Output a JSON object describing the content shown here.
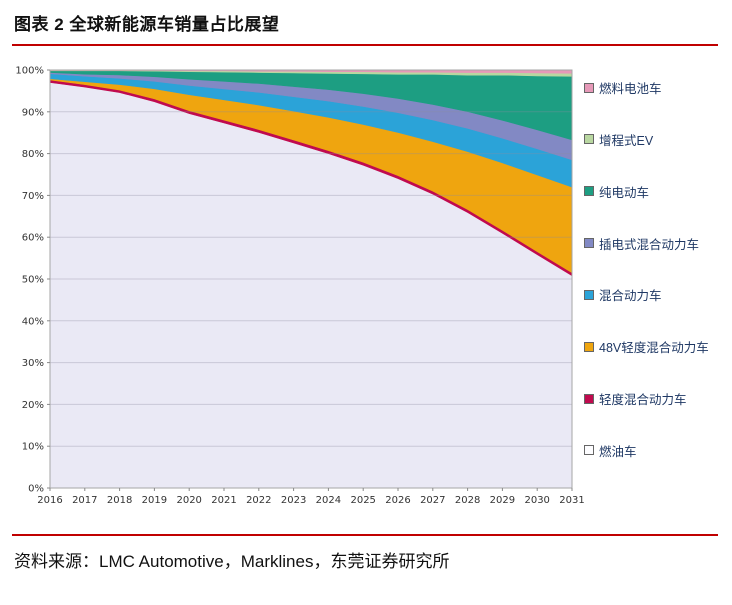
{
  "title": "图表 2 全球新能源车销量占比展望",
  "source": "资料来源：LMC Automotive，Marklines，东莞证券研究所",
  "accent_rule_color": "#c00000",
  "chart_data": {
    "type": "area",
    "stacked": true,
    "title": "全球新能源车销量占比展望",
    "grid": true,
    "legend_position": "right",
    "ylim": [
      0,
      100
    ],
    "y_ticks": [
      "0%",
      "10%",
      "20%",
      "30%",
      "40%",
      "50%",
      "60%",
      "70%",
      "80%",
      "90%",
      "100%"
    ],
    "x": [
      "2016",
      "2017",
      "2018",
      "2019",
      "2020",
      "2021",
      "2022",
      "2023",
      "2024",
      "2025",
      "2026",
      "2027",
      "2028",
      "2029",
      "2030",
      "2031"
    ],
    "series": [
      {
        "id": "fuel-vehicle",
        "name": "燃油车",
        "color": "#eae9f5",
        "swatch_color": "#fdfdff",
        "values": [
          97.0,
          96.2,
          94.8,
          92.4,
          89.3,
          86.8,
          84.2,
          81.4,
          78.4,
          75.3,
          71.8,
          68.2,
          64.2,
          59.8,
          55.4,
          50.8
        ]
      },
      {
        "id": "mild-hybrid",
        "name": "轻度混合动力车",
        "color": "#c00a4e",
        "values": [
          0.6,
          0.6,
          0.6,
          0.7,
          0.7,
          0.7,
          0.7,
          0.7,
          0.7,
          0.7,
          0.7,
          0.7,
          0.7,
          0.7,
          0.7,
          0.7
        ]
      },
      {
        "id": "mhev-48v",
        "name": "48V轻度混合动力车",
        "color": "#efa50f",
        "values": [
          0.3,
          0.7,
          1.3,
          2.4,
          3.8,
          4.8,
          5.8,
          6.8,
          7.8,
          8.8,
          10.0,
          11.5,
          13.5,
          15.8,
          18.2,
          20.5
        ]
      },
      {
        "id": "hybrid",
        "name": "混合动力车",
        "color": "#2ba3d8",
        "values": [
          1.2,
          1.3,
          1.5,
          1.8,
          2.2,
          2.6,
          3.0,
          3.4,
          3.8,
          4.2,
          4.6,
          5.0,
          5.4,
          5.8,
          6.2,
          6.5
        ]
      },
      {
        "id": "phev",
        "name": "插电式混合动力车",
        "color": "#8289c4",
        "values": [
          0.3,
          0.5,
          0.8,
          1.1,
          1.5,
          1.8,
          2.1,
          2.4,
          2.7,
          3.0,
          3.3,
          3.6,
          3.9,
          4.2,
          4.5,
          4.8
        ]
      },
      {
        "id": "bev",
        "name": "纯电动车",
        "color": "#1d9e82",
        "values": [
          0.4,
          0.8,
          1.0,
          1.3,
          1.8,
          2.2,
          2.6,
          3.2,
          3.8,
          4.6,
          5.6,
          7.0,
          8.5,
          10.6,
          12.8,
          15.2
        ]
      },
      {
        "id": "erev",
        "name": "增程式EV",
        "color": "#b9d7a1",
        "values": [
          0.1,
          0.1,
          0.1,
          0.2,
          0.2,
          0.3,
          0.3,
          0.4,
          0.4,
          0.5,
          0.5,
          0.5,
          0.6,
          0.6,
          0.7,
          0.7
        ]
      },
      {
        "id": "fcv",
        "name": "燃料电池车",
        "color": "#e699b8",
        "values": [
          0.1,
          0.1,
          0.1,
          0.1,
          0.2,
          0.2,
          0.3,
          0.3,
          0.4,
          0.4,
          0.5,
          0.5,
          0.6,
          0.6,
          0.7,
          0.8
        ]
      }
    ]
  }
}
